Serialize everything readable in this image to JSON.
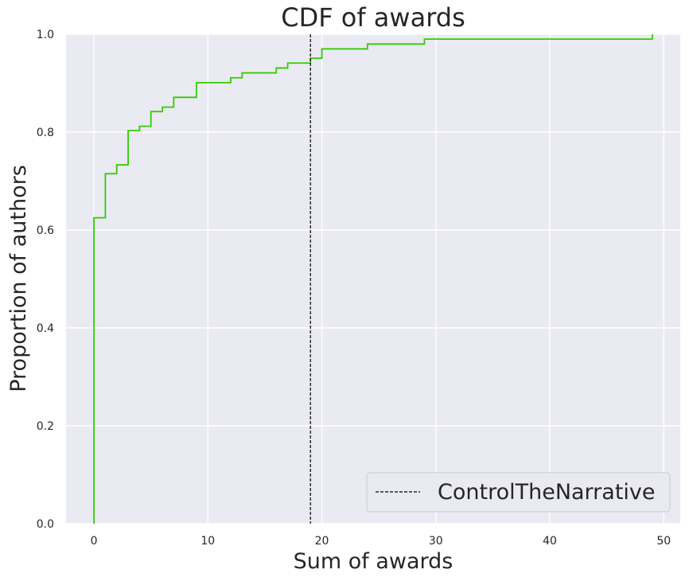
{
  "chart_data": {
    "type": "line",
    "title": "CDF of awards",
    "xlabel": "Sum of awards",
    "ylabel": "Proportion of authors",
    "xlim": [
      -2.45,
      51.45
    ],
    "ylim": [
      0.0,
      1.0
    ],
    "xticks": [
      0,
      10,
      20,
      30,
      40,
      50
    ],
    "yticks": [
      0.0,
      0.2,
      0.4,
      0.6,
      0.8,
      1.0
    ],
    "xtick_labels": [
      "0",
      "10",
      "20",
      "30",
      "40",
      "50"
    ],
    "ytick_labels": [
      "0.0",
      "0.2",
      "0.4",
      "0.6",
      "0.8",
      "1.0"
    ],
    "grid": true,
    "legend_position": "lower-right",
    "series": [
      {
        "kind": "step",
        "color": "#33cc00",
        "x": [
          0,
          0,
          1,
          2,
          3,
          4,
          5,
          6,
          7,
          9,
          12,
          13,
          16,
          17,
          19,
          20,
          24,
          29,
          49
        ],
        "y": [
          0.0,
          0.625,
          0.715,
          0.733,
          0.803,
          0.812,
          0.842,
          0.851,
          0.871,
          0.901,
          0.911,
          0.921,
          0.931,
          0.941,
          0.951,
          0.97,
          0.98,
          0.99,
          1.0
        ]
      }
    ],
    "vline": {
      "name": "ControlTheNarrative",
      "x": 19,
      "color": "#000000",
      "style": "dashed"
    },
    "legend": [
      {
        "label": "ControlTheNarrative",
        "style": "dashed",
        "color": "#000000"
      }
    ]
  },
  "colors": {
    "plot_background": "#eaeaf2",
    "grid": "#ffffff"
  }
}
